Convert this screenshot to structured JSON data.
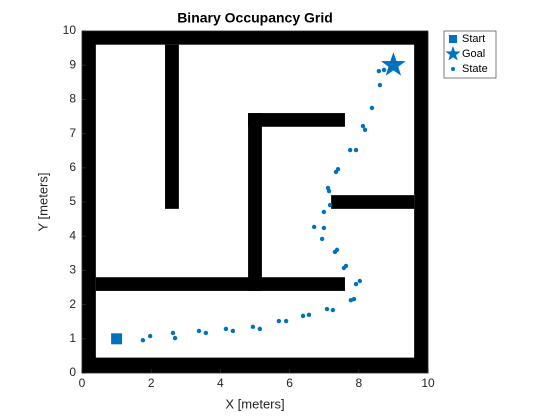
{
  "chart_data": {
    "type": "scatter",
    "title": "Binary Occupancy Grid",
    "x_label": "X [meters]",
    "y_label": "Y [meters]",
    "xlim": [
      0,
      10
    ],
    "ylim": [
      0,
      10
    ],
    "xticks": [
      0,
      2,
      4,
      6,
      8,
      10
    ],
    "yticks": [
      0,
      1,
      2,
      3,
      4,
      5,
      6,
      7,
      8,
      9,
      10
    ],
    "occupied": [
      [
        0,
        10,
        0,
        0.45
      ],
      [
        0,
        10,
        9.6,
        10
      ],
      [
        0,
        0.4,
        0,
        10
      ],
      [
        9.6,
        10,
        0,
        10
      ],
      [
        2.4,
        2.8,
        4.8,
        9.6
      ],
      [
        0.4,
        7.6,
        2.4,
        2.8
      ],
      [
        4.8,
        5.2,
        2.4,
        7.6
      ],
      [
        4.8,
        7.6,
        7.2,
        7.6
      ],
      [
        7.2,
        9.6,
        4.8,
        5.2
      ]
    ],
    "legend": "northeastoutside",
    "series": [
      {
        "name": "Start",
        "color": "#0072bd",
        "marker": "square",
        "x": [
          1
        ],
        "y": [
          1
        ]
      },
      {
        "name": "Goal",
        "color": "#0072bd",
        "marker": "star",
        "x": [
          9
        ],
        "y": [
          9
        ]
      },
      {
        "name": "State",
        "color": "#0072bd",
        "marker": "point",
        "x": [
          1.76,
          1.97,
          2.63,
          2.69,
          3.38,
          3.58,
          4.16,
          4.36,
          4.94,
          5.14,
          5.69,
          5.9,
          6.39,
          6.56,
          7.08,
          7.25,
          7.77,
          7.86,
          7.92,
          8.03,
          7.57,
          7.63,
          7.31,
          7.37,
          6.94,
          6.99,
          6.71,
          6.99,
          7.17,
          7.14,
          7.11,
          7.34,
          7.4,
          7.75,
          7.92,
          8.12,
          8.18,
          8.38,
          8.61,
          8.58,
          8.73
        ],
        "y": [
          0.96,
          1.08,
          1.17,
          1.02,
          1.23,
          1.17,
          1.29,
          1.23,
          1.35,
          1.29,
          1.52,
          1.52,
          1.67,
          1.7,
          1.87,
          1.84,
          2.13,
          2.16,
          2.6,
          2.69,
          3.07,
          3.13,
          3.54,
          3.6,
          3.92,
          4.24,
          4.27,
          4.71,
          4.91,
          5.32,
          5.41,
          5.88,
          5.96,
          6.52,
          6.52,
          7.22,
          7.11,
          7.75,
          8.42,
          8.83,
          8.86
        ]
      }
    ]
  }
}
